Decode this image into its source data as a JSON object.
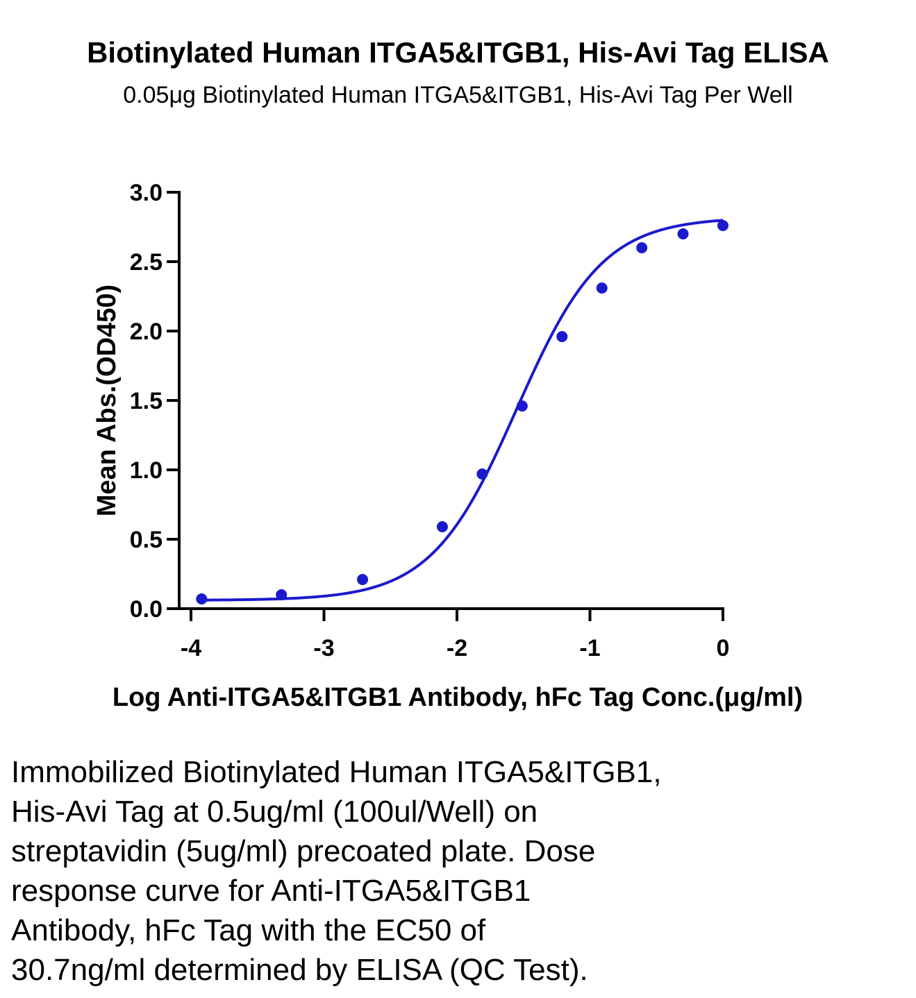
{
  "chart_data": {
    "type": "line",
    "title": "Biotinylated Human ITGA5&ITGB1, His-Avi Tag ELISA",
    "subtitle": "0.05μg Biotinylated Human ITGA5&ITGB1, His-Avi Tag Per Well",
    "xlabel": "Log Anti-ITGA5&ITGB1 Antibody, hFc Tag Conc.(μg/ml)",
    "ylabel": "Mean Abs.(OD450)",
    "xlim": [
      -4,
      0
    ],
    "ylim": [
      0,
      3
    ],
    "x_ticks": [
      "-4",
      "-3",
      "-2",
      "-1",
      "0"
    ],
    "y_ticks": [
      "0.0",
      "0.5",
      "1.0",
      "1.5",
      "2.0",
      "2.5",
      "3.0"
    ],
    "grid": false,
    "legend": "none",
    "series": [
      {
        "color": "#1a1acc",
        "markers": "circle",
        "fit": "4PL sigmoid",
        "x": [
          -3.92,
          -3.32,
          -2.71,
          -2.11,
          -1.81,
          -1.51,
          -1.21,
          -0.91,
          -0.61,
          -0.3,
          0.0
        ],
        "y": [
          0.07,
          0.1,
          0.21,
          0.59,
          0.97,
          1.46,
          1.96,
          2.31,
          2.6,
          2.7,
          2.76
        ]
      }
    ],
    "caption": "Immobilized Biotinylated Human ITGA5&ITGB1, His-Avi Tag at 0.5ug/ml (100ul/Well) on streptavidin (5ug/ml) precoated plate. Dose response curve for Anti-ITGA5&ITGB1 Antibody, hFc Tag with the EC50 of 30.7ng/ml determined by ELISA (QC Test)."
  },
  "caption_lines": [
    "Immobilized Biotinylated Human ITGA5&ITGB1,",
    "His-Avi Tag at 0.5ug/ml (100ul/Well) on",
    "streptavidin (5ug/ml) precoated plate. Dose",
    "response curve for Anti-ITGA5&ITGB1",
    "Antibody, hFc Tag with the EC50 of",
    "30.7ng/ml determined by ELISA (QC Test)."
  ]
}
